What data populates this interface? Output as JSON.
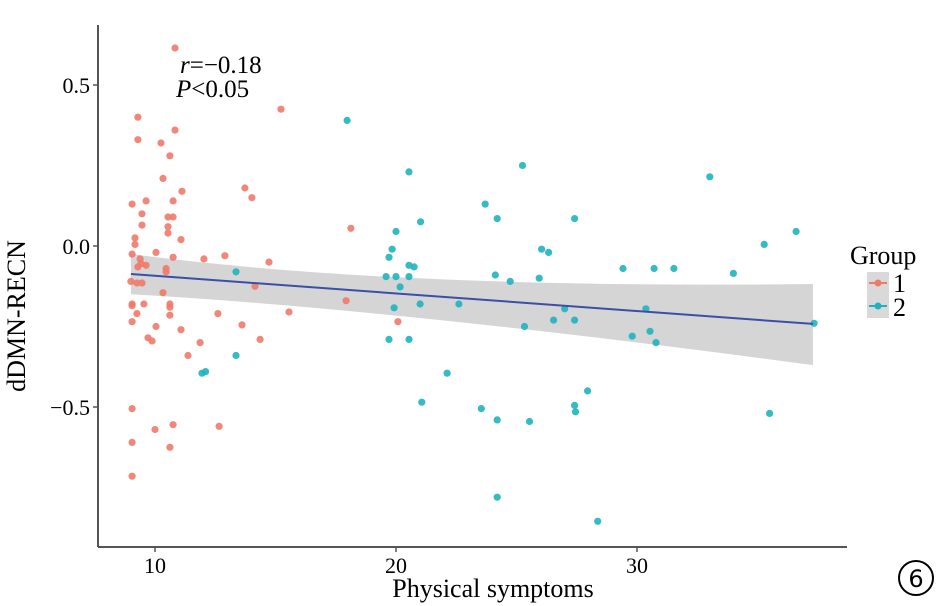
{
  "chart_data": {
    "type": "scatter",
    "title": "",
    "xlabel": "Physical symptoms",
    "ylabel": "dDMN-RECN",
    "xlim": [
      7.7,
      38.5
    ],
    "ylim": [
      -0.94,
      0.68
    ],
    "x_ticks": [
      10,
      20,
      30
    ],
    "x_tick_labels": [
      "10",
      "20",
      "30"
    ],
    "y_ticks": [
      0.5,
      0.0,
      -0.5
    ],
    "y_tick_labels": [
      "0.5",
      "0.0",
      "−0.5"
    ],
    "grid": false,
    "annotation": {
      "r_label": "r",
      "r_value": "=−0.18",
      "p_label": "P",
      "p_value": "<0.05"
    },
    "legend": {
      "title": "Group",
      "placement": "right",
      "entries": [
        {
          "label": "1",
          "color": "#F07A6A"
        },
        {
          "label": "2",
          "color": "#20B2BC"
        }
      ]
    },
    "regression": {
      "method": "linear",
      "color": "#3A4FA8",
      "band_color": "#D5D5D5",
      "x_start": 9.0,
      "x_end": 37.3,
      "y_start": -0.087,
      "y_end": -0.242,
      "ci_upper_start": -0.025,
      "ci_lower_start": -0.15,
      "ci_upper_end": -0.118,
      "ci_lower_end": -0.37,
      "ci_upper_mid": -0.14,
      "ci_lower_mid": -0.19,
      "x_mid": 20.0
    },
    "series": [
      {
        "name": "1",
        "color": "#F07A6A",
        "points": [
          [
            10.83,
            0.615
          ],
          [
            9.29,
            0.4
          ],
          [
            10.83,
            0.36
          ],
          [
            9.29,
            0.33
          ],
          [
            10.25,
            0.32
          ],
          [
            10.62,
            0.28
          ],
          [
            10.33,
            0.21
          ],
          [
            11.12,
            0.17
          ],
          [
            9.05,
            0.13
          ],
          [
            9.63,
            0.14
          ],
          [
            10.75,
            0.14
          ],
          [
            9.46,
            0.1
          ],
          [
            10.54,
            0.09
          ],
          [
            10.75,
            0.09
          ],
          [
            9.46,
            0.065
          ],
          [
            10.54,
            0.06
          ],
          [
            10.54,
            0.04
          ],
          [
            9.17,
            0.025
          ],
          [
            9.17,
            0.005
          ],
          [
            11.08,
            0.02
          ],
          [
            15.23,
            0.425
          ],
          [
            13.73,
            0.18
          ],
          [
            14.02,
            0.15
          ],
          [
            18.13,
            0.055
          ],
          [
            9.05,
            -0.025
          ],
          [
            10.04,
            -0.02
          ],
          [
            10.75,
            -0.035
          ],
          [
            12.03,
            -0.04
          ],
          [
            12.9,
            -0.03
          ],
          [
            14.73,
            -0.05
          ],
          [
            9.38,
            -0.04
          ],
          [
            9.42,
            -0.055
          ],
          [
            9.29,
            -0.065
          ],
          [
            9.63,
            -0.06
          ],
          [
            10.46,
            -0.07
          ],
          [
            10.46,
            -0.08
          ],
          [
            9.0,
            -0.11
          ],
          [
            9.25,
            -0.115
          ],
          [
            9.46,
            -0.115
          ],
          [
            10.33,
            -0.145
          ],
          [
            14.15,
            -0.125
          ],
          [
            9.05,
            -0.18
          ],
          [
            9.05,
            -0.185
          ],
          [
            9.54,
            -0.18
          ],
          [
            10.62,
            -0.18
          ],
          [
            10.62,
            -0.19
          ],
          [
            17.93,
            -0.17
          ],
          [
            9.25,
            -0.21
          ],
          [
            10.62,
            -0.215
          ],
          [
            12.61,
            -0.21
          ],
          [
            15.56,
            -0.205
          ],
          [
            9.05,
            -0.235
          ],
          [
            10.04,
            -0.25
          ],
          [
            11.08,
            -0.26
          ],
          [
            13.61,
            -0.245
          ],
          [
            9.71,
            -0.285
          ],
          [
            9.88,
            -0.295
          ],
          [
            14.36,
            -0.29
          ],
          [
            11.87,
            -0.3
          ],
          [
            11.37,
            -0.34
          ],
          [
            20.08,
            -0.235
          ],
          [
            9.05,
            -0.505
          ],
          [
            10.0,
            -0.57
          ],
          [
            10.75,
            -0.555
          ],
          [
            12.66,
            -0.56
          ],
          [
            9.05,
            -0.61
          ],
          [
            10.62,
            -0.625
          ],
          [
            9.05,
            -0.715
          ]
        ]
      },
      {
        "name": "2",
        "color": "#20B2BC",
        "points": [
          [
            17.97,
            0.39
          ],
          [
            20.54,
            0.23
          ],
          [
            25.25,
            0.25
          ],
          [
            33.02,
            0.215
          ],
          [
            23.7,
            0.13
          ],
          [
            24.2,
            0.085
          ],
          [
            21.02,
            0.075
          ],
          [
            27.41,
            0.085
          ],
          [
            20.0,
            0.045
          ],
          [
            19.84,
            -0.01
          ],
          [
            19.71,
            -0.035
          ],
          [
            20.54,
            -0.06
          ],
          [
            20.75,
            -0.065
          ],
          [
            26.04,
            -0.01
          ],
          [
            26.33,
            -0.02
          ],
          [
            36.6,
            0.045
          ],
          [
            35.28,
            0.005
          ],
          [
            19.59,
            -0.095
          ],
          [
            20.54,
            -0.095
          ],
          [
            20.0,
            -0.095
          ],
          [
            20.17,
            -0.127
          ],
          [
            19.92,
            -0.192
          ],
          [
            21.0,
            -0.18
          ],
          [
            22.61,
            -0.18
          ],
          [
            24.74,
            -0.11
          ],
          [
            25.94,
            -0.1
          ],
          [
            26.54,
            -0.23
          ],
          [
            25.33,
            -0.25
          ],
          [
            27.41,
            -0.23
          ],
          [
            29.42,
            -0.07
          ],
          [
            30.71,
            -0.07
          ],
          [
            34.0,
            -0.085
          ],
          [
            31.53,
            -0.07
          ],
          [
            30.37,
            -0.195
          ],
          [
            27.0,
            -0.195
          ],
          [
            30.54,
            -0.265
          ],
          [
            30.79,
            -0.3
          ],
          [
            29.8,
            -0.28
          ],
          [
            24.12,
            -0.09
          ],
          [
            37.35,
            -0.24
          ],
          [
            13.36,
            -0.08
          ],
          [
            13.36,
            -0.34
          ],
          [
            11.95,
            -0.395
          ],
          [
            12.1,
            -0.39
          ],
          [
            20.54,
            -0.29
          ],
          [
            22.12,
            -0.395
          ],
          [
            21.07,
            -0.485
          ],
          [
            23.54,
            -0.505
          ],
          [
            24.2,
            -0.54
          ],
          [
            25.54,
            -0.545
          ],
          [
            27.41,
            -0.495
          ],
          [
            27.45,
            -0.515
          ],
          [
            27.95,
            -0.45
          ],
          [
            24.2,
            -0.78
          ],
          [
            28.37,
            -0.855
          ],
          [
            35.5,
            -0.52
          ],
          [
            19.71,
            -0.29
          ]
        ]
      }
    ]
  },
  "badge": {
    "label": "6"
  }
}
